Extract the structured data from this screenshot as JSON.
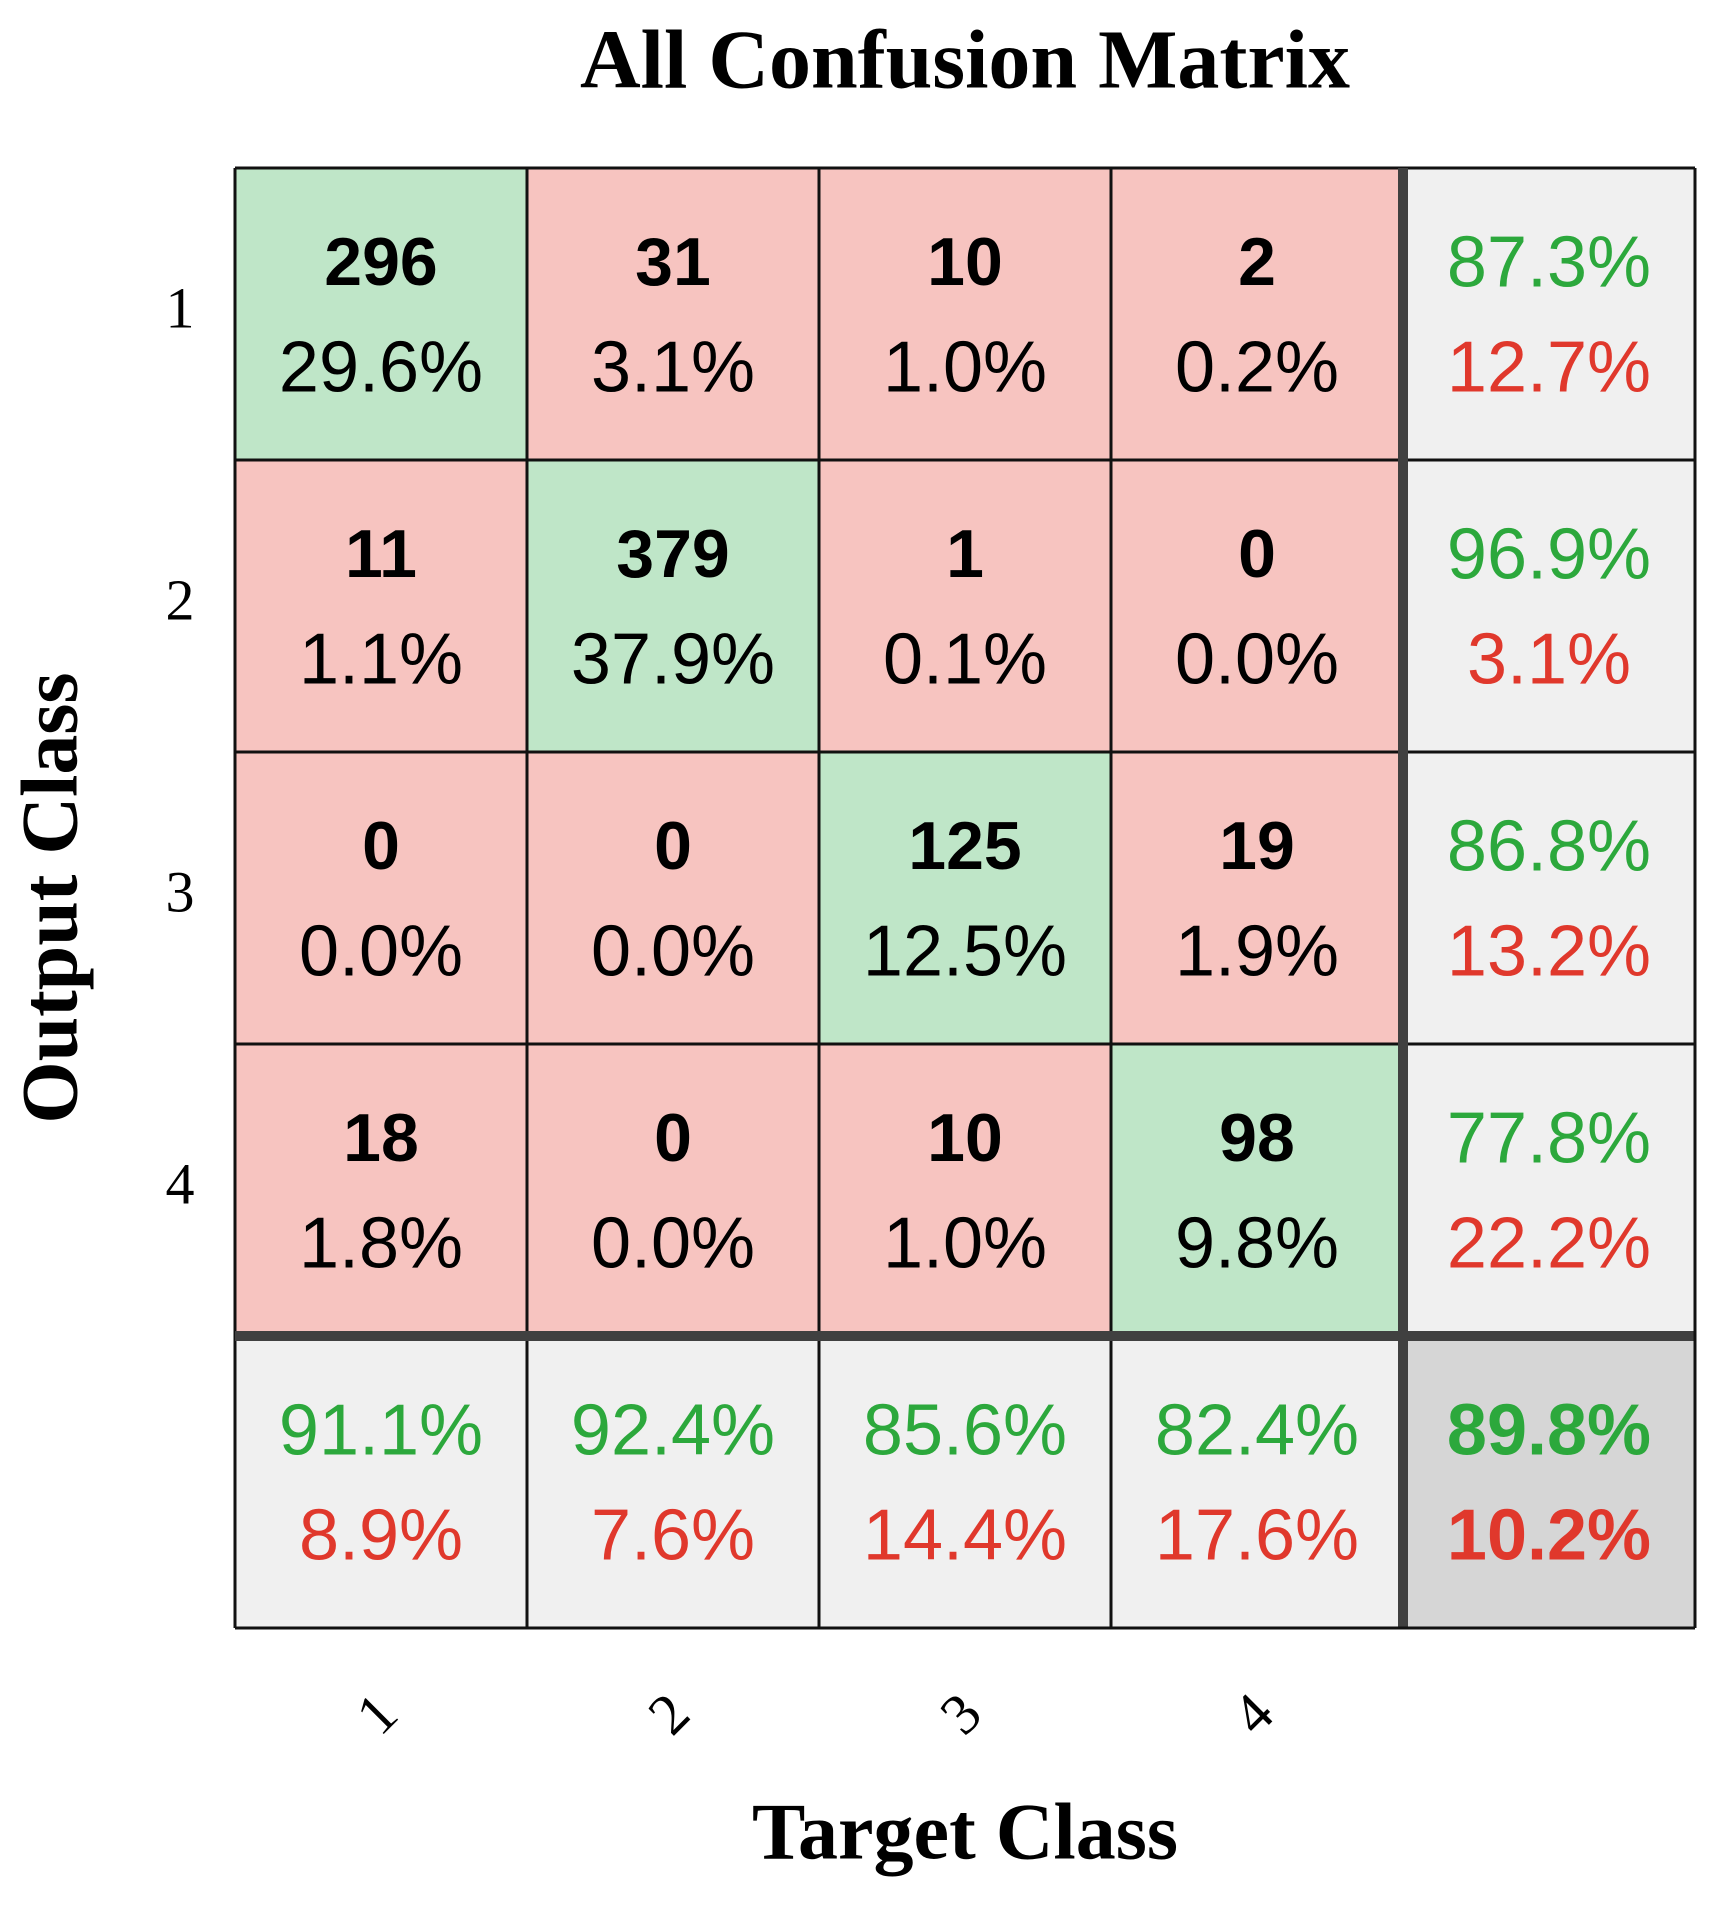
{
  "chart_data": {
    "type": "confusion_matrix",
    "title": "All Confusion Matrix",
    "xlabel": "Target Class",
    "ylabel": "Output Class",
    "classes": [
      "1",
      "2",
      "3",
      "4"
    ],
    "counts": [
      [
        296,
        31,
        10,
        2
      ],
      [
        11,
        379,
        1,
        0
      ],
      [
        0,
        0,
        125,
        19
      ],
      [
        18,
        0,
        10,
        98
      ]
    ],
    "percents": [
      [
        "29.6%",
        "3.1%",
        "1.0%",
        "0.2%"
      ],
      [
        "1.1%",
        "37.9%",
        "0.1%",
        "0.0%"
      ],
      [
        "0.0%",
        "0.0%",
        "12.5%",
        "1.9%"
      ],
      [
        "1.8%",
        "0.0%",
        "1.0%",
        "9.8%"
      ]
    ],
    "row_summary": [
      [
        "87.3%",
        "12.7%"
      ],
      [
        "96.9%",
        "3.1%"
      ],
      [
        "86.8%",
        "13.2%"
      ],
      [
        "77.8%",
        "22.2%"
      ]
    ],
    "column_summary": [
      [
        "91.1%",
        "8.9%"
      ],
      [
        "92.4%",
        "7.6%"
      ],
      [
        "85.6%",
        "14.4%"
      ],
      [
        "82.4%",
        "17.6%"
      ]
    ],
    "overall": [
      "89.8%",
      "10.2%"
    ],
    "colors": {
      "correct": "#bfe6c8",
      "incorrect": "#f7c4c0",
      "summary": "#f0f0f0",
      "overall": "#d6d6d6",
      "good_text": "#2ca83c",
      "bad_text": "#e0382c"
    }
  }
}
